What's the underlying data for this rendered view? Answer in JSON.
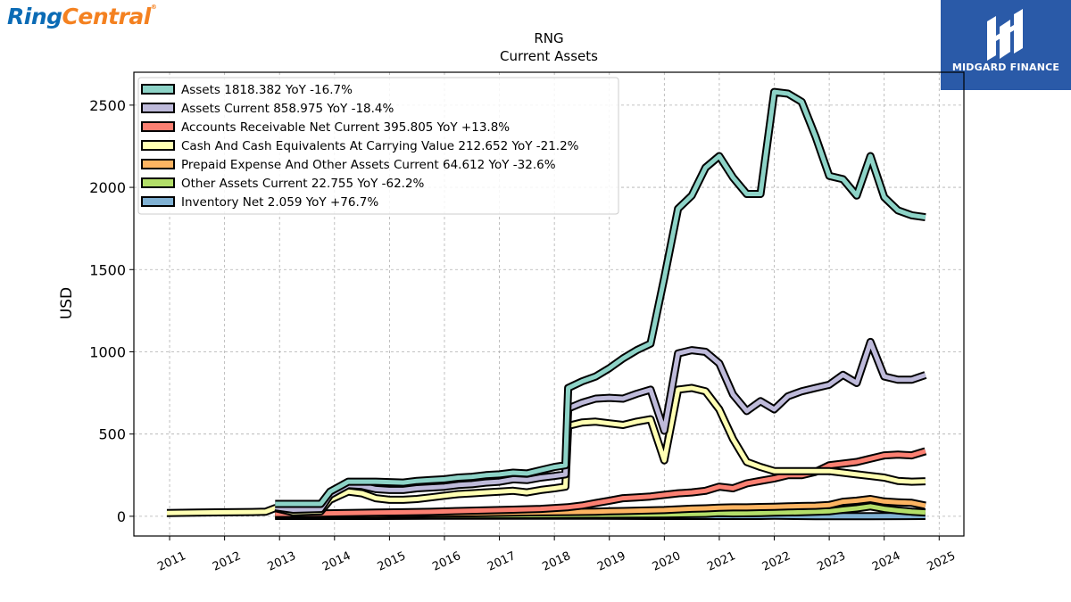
{
  "branding": {
    "left_logo_ring": "Ring",
    "left_logo_central": "Central",
    "left_logo_mark": "®",
    "right_logo_text": "MIDGARD FINANCE"
  },
  "colors": {
    "assets": "#8dd3c7",
    "assets_current": "#bebada",
    "accounts_receivable": "#fb8072",
    "cash": "#ffffb3",
    "prepaid": "#fdb462",
    "other": "#b3de69",
    "inventory": "#80b1d3",
    "logo_blue": "#2a5aa8"
  },
  "chart_data": {
    "type": "line",
    "title": "RNG",
    "subtitle": "Current  Assets",
    "xlabel": "",
    "ylabel": "USD",
    "xlim": [
      2010.35,
      2025.45
    ],
    "ylim": [
      -120,
      2700
    ],
    "x_ticks": [
      "2011",
      "2012",
      "2013",
      "2014",
      "2015",
      "2016",
      "2017",
      "2018",
      "2019",
      "2020",
      "2021",
      "2022",
      "2023",
      "2024",
      "2025"
    ],
    "y_ticks": [
      0,
      500,
      1000,
      1500,
      2000,
      2500
    ],
    "grid": true,
    "legend_position": "top-left",
    "series": [
      {
        "name": "Assets",
        "legend_label": "Assets  1818.382 YoY -16.7%",
        "color_key": "assets",
        "points": [
          [
            2012.92,
            75
          ],
          [
            2013.75,
            75
          ],
          [
            2013.92,
            150
          ],
          [
            2014.25,
            210
          ],
          [
            2014.75,
            210
          ],
          [
            2015.25,
            205
          ],
          [
            2015.5,
            215
          ],
          [
            2015.75,
            220
          ],
          [
            2016.0,
            225
          ],
          [
            2016.25,
            235
          ],
          [
            2016.5,
            240
          ],
          [
            2016.75,
            250
          ],
          [
            2017.0,
            255
          ],
          [
            2017.25,
            265
          ],
          [
            2017.5,
            260
          ],
          [
            2017.75,
            280
          ],
          [
            2018.0,
            300
          ],
          [
            2018.2,
            310
          ],
          [
            2018.25,
            780
          ],
          [
            2018.5,
            820
          ],
          [
            2018.75,
            850
          ],
          [
            2019.0,
            900
          ],
          [
            2019.25,
            960
          ],
          [
            2019.5,
            1010
          ],
          [
            2019.75,
            1050
          ],
          [
            2020.0,
            1450
          ],
          [
            2020.25,
            1870
          ],
          [
            2020.5,
            1950
          ],
          [
            2020.75,
            2120
          ],
          [
            2021.0,
            2190
          ],
          [
            2021.25,
            2060
          ],
          [
            2021.5,
            1960
          ],
          [
            2021.75,
            1960
          ],
          [
            2022.0,
            2580
          ],
          [
            2022.25,
            2570
          ],
          [
            2022.5,
            2520
          ],
          [
            2022.75,
            2310
          ],
          [
            2023.0,
            2070
          ],
          [
            2023.25,
            2050
          ],
          [
            2023.5,
            1950
          ],
          [
            2023.75,
            2190
          ],
          [
            2024.0,
            1940
          ],
          [
            2024.25,
            1860
          ],
          [
            2024.5,
            1830
          ],
          [
            2024.75,
            1818
          ]
        ]
      },
      {
        "name": "Assets Current",
        "legend_label": "Assets Current  858.975 YoY -18.4%",
        "color_key": "assets_current",
        "points": [
          [
            2012.92,
            55
          ],
          [
            2013.25,
            40
          ],
          [
            2013.75,
            45
          ],
          [
            2013.92,
            130
          ],
          [
            2014.25,
            190
          ],
          [
            2014.5,
            185
          ],
          [
            2014.75,
            165
          ],
          [
            2015.0,
            160
          ],
          [
            2015.25,
            160
          ],
          [
            2015.5,
            170
          ],
          [
            2015.75,
            175
          ],
          [
            2016.0,
            180
          ],
          [
            2016.25,
            190
          ],
          [
            2016.5,
            195
          ],
          [
            2016.75,
            205
          ],
          [
            2017.0,
            210
          ],
          [
            2017.25,
            225
          ],
          [
            2017.5,
            220
          ],
          [
            2017.75,
            235
          ],
          [
            2018.0,
            245
          ],
          [
            2018.2,
            255
          ],
          [
            2018.25,
            655
          ],
          [
            2018.5,
            690
          ],
          [
            2018.75,
            715
          ],
          [
            2019.0,
            720
          ],
          [
            2019.25,
            715
          ],
          [
            2019.5,
            745
          ],
          [
            2019.75,
            770
          ],
          [
            2020.0,
            520
          ],
          [
            2020.25,
            990
          ],
          [
            2020.5,
            1010
          ],
          [
            2020.75,
            1000
          ],
          [
            2021.0,
            930
          ],
          [
            2021.25,
            740
          ],
          [
            2021.5,
            640
          ],
          [
            2021.75,
            700
          ],
          [
            2022.0,
            650
          ],
          [
            2022.25,
            730
          ],
          [
            2022.5,
            760
          ],
          [
            2022.75,
            780
          ],
          [
            2023.0,
            800
          ],
          [
            2023.25,
            860
          ],
          [
            2023.5,
            810
          ],
          [
            2023.75,
            1060
          ],
          [
            2024.0,
            850
          ],
          [
            2024.25,
            830
          ],
          [
            2024.5,
            830
          ],
          [
            2024.75,
            859
          ]
        ]
      },
      {
        "name": "Accounts Receivable Net Current",
        "legend_label": "Accounts Receivable Net Current  395.805 YoY +13.8%",
        "color_key": "accounts_receivable",
        "points": [
          [
            2012.92,
            15
          ],
          [
            2013.75,
            17
          ],
          [
            2014.25,
            20
          ],
          [
            2014.75,
            22
          ],
          [
            2015.25,
            24
          ],
          [
            2015.75,
            27
          ],
          [
            2016.25,
            32
          ],
          [
            2016.75,
            36
          ],
          [
            2017.25,
            40
          ],
          [
            2017.75,
            45
          ],
          [
            2018.25,
            55
          ],
          [
            2018.5,
            65
          ],
          [
            2018.75,
            80
          ],
          [
            2019.0,
            95
          ],
          [
            2019.25,
            110
          ],
          [
            2019.5,
            115
          ],
          [
            2019.75,
            120
          ],
          [
            2020.0,
            130
          ],
          [
            2020.25,
            140
          ],
          [
            2020.5,
            145
          ],
          [
            2020.75,
            155
          ],
          [
            2021.0,
            180
          ],
          [
            2021.25,
            170
          ],
          [
            2021.5,
            200
          ],
          [
            2021.75,
            215
          ],
          [
            2022.0,
            230
          ],
          [
            2022.25,
            250
          ],
          [
            2022.5,
            250
          ],
          [
            2022.75,
            270
          ],
          [
            2023.0,
            310
          ],
          [
            2023.25,
            320
          ],
          [
            2023.5,
            330
          ],
          [
            2023.75,
            350
          ],
          [
            2024.0,
            370
          ],
          [
            2024.25,
            375
          ],
          [
            2024.5,
            370
          ],
          [
            2024.75,
            396
          ]
        ]
      },
      {
        "name": "Cash And Cash Equivalents At Carrying Value",
        "legend_label": "Cash And Cash Equivalents At Carrying Value  212.652 YoY -21.2%",
        "color_key": "cash",
        "points": [
          [
            2010.95,
            20
          ],
          [
            2011.5,
            22
          ],
          [
            2012.0,
            24
          ],
          [
            2012.5,
            26
          ],
          [
            2012.75,
            28
          ],
          [
            2012.92,
            50
          ],
          [
            2013.25,
            25
          ],
          [
            2013.75,
            30
          ],
          [
            2013.92,
            100
          ],
          [
            2014.25,
            150
          ],
          [
            2014.5,
            140
          ],
          [
            2014.75,
            110
          ],
          [
            2015.0,
            100
          ],
          [
            2015.25,
            100
          ],
          [
            2015.5,
            105
          ],
          [
            2015.75,
            115
          ],
          [
            2016.0,
            125
          ],
          [
            2016.25,
            135
          ],
          [
            2016.5,
            140
          ],
          [
            2016.75,
            145
          ],
          [
            2017.0,
            150
          ],
          [
            2017.25,
            155
          ],
          [
            2017.5,
            145
          ],
          [
            2017.75,
            160
          ],
          [
            2018.0,
            170
          ],
          [
            2018.2,
            180
          ],
          [
            2018.25,
            550
          ],
          [
            2018.5,
            570
          ],
          [
            2018.75,
            575
          ],
          [
            2019.0,
            565
          ],
          [
            2019.25,
            555
          ],
          [
            2019.5,
            575
          ],
          [
            2019.75,
            590
          ],
          [
            2020.0,
            340
          ],
          [
            2020.25,
            770
          ],
          [
            2020.5,
            780
          ],
          [
            2020.75,
            760
          ],
          [
            2021.0,
            650
          ],
          [
            2021.25,
            470
          ],
          [
            2021.5,
            330
          ],
          [
            2021.75,
            300
          ],
          [
            2022.0,
            275
          ],
          [
            2022.25,
            275
          ],
          [
            2022.5,
            275
          ],
          [
            2022.75,
            275
          ],
          [
            2023.0,
            275
          ],
          [
            2023.25,
            265
          ],
          [
            2023.5,
            255
          ],
          [
            2023.75,
            245
          ],
          [
            2024.0,
            235
          ],
          [
            2024.25,
            215
          ],
          [
            2024.5,
            210
          ],
          [
            2024.75,
            213
          ]
        ]
      },
      {
        "name": "Prepaid Expense And Other Assets Current",
        "legend_label": "Prepaid Expense And Other Assets Current  64.612 YoY -32.6%",
        "color_key": "prepaid",
        "points": [
          [
            2012.92,
            8
          ],
          [
            2013.75,
            9
          ],
          [
            2014.25,
            10
          ],
          [
            2014.75,
            12
          ],
          [
            2015.25,
            14
          ],
          [
            2015.75,
            16
          ],
          [
            2016.25,
            18
          ],
          [
            2016.75,
            20
          ],
          [
            2017.25,
            22
          ],
          [
            2017.75,
            24
          ],
          [
            2018.25,
            26
          ],
          [
            2018.75,
            28
          ],
          [
            2019.0,
            30
          ],
          [
            2019.25,
            32
          ],
          [
            2019.5,
            34
          ],
          [
            2019.75,
            36
          ],
          [
            2020.0,
            38
          ],
          [
            2020.25,
            42
          ],
          [
            2020.5,
            46
          ],
          [
            2020.75,
            48
          ],
          [
            2021.0,
            52
          ],
          [
            2021.25,
            54
          ],
          [
            2021.5,
            54
          ],
          [
            2021.75,
            56
          ],
          [
            2022.0,
            58
          ],
          [
            2022.25,
            60
          ],
          [
            2022.5,
            62
          ],
          [
            2022.75,
            64
          ],
          [
            2023.0,
            68
          ],
          [
            2023.25,
            88
          ],
          [
            2023.5,
            95
          ],
          [
            2023.75,
            105
          ],
          [
            2024.0,
            90
          ],
          [
            2024.25,
            85
          ],
          [
            2024.5,
            82
          ],
          [
            2024.75,
            65
          ]
        ]
      },
      {
        "name": "Other Assets Current",
        "legend_label": "Other Assets Current  22.755 YoY -62.2%",
        "color_key": "other",
        "points": [
          [
            2012.92,
            3
          ],
          [
            2014.0,
            4
          ],
          [
            2015.0,
            5
          ],
          [
            2016.0,
            6
          ],
          [
            2017.0,
            7
          ],
          [
            2018.0,
            8
          ],
          [
            2019.0,
            10
          ],
          [
            2020.0,
            12
          ],
          [
            2020.75,
            15
          ],
          [
            2021.0,
            20
          ],
          [
            2021.25,
            18
          ],
          [
            2021.75,
            20
          ],
          [
            2022.0,
            22
          ],
          [
            2022.5,
            25
          ],
          [
            2023.0,
            30
          ],
          [
            2023.25,
            40
          ],
          [
            2023.5,
            48
          ],
          [
            2023.75,
            60
          ],
          [
            2024.0,
            45
          ],
          [
            2024.25,
            35
          ],
          [
            2024.5,
            28
          ],
          [
            2024.75,
            23
          ]
        ]
      },
      {
        "name": "Inventory Net",
        "legend_label": "Inventory Net  2.059 YoY +76.7%",
        "color_key": "inventory",
        "points": [
          [
            2012.92,
            2
          ],
          [
            2013.75,
            2
          ],
          [
            2014.75,
            2
          ],
          [
            2015.75,
            3
          ],
          [
            2016.75,
            3
          ],
          [
            2017.75,
            3
          ],
          [
            2018.75,
            3
          ],
          [
            2019.75,
            2
          ],
          [
            2020.75,
            2
          ],
          [
            2021.75,
            2
          ],
          [
            2022.0,
            3
          ],
          [
            2022.75,
            1
          ],
          [
            2023.75,
            1
          ],
          [
            2024.75,
            2
          ]
        ]
      }
    ]
  }
}
